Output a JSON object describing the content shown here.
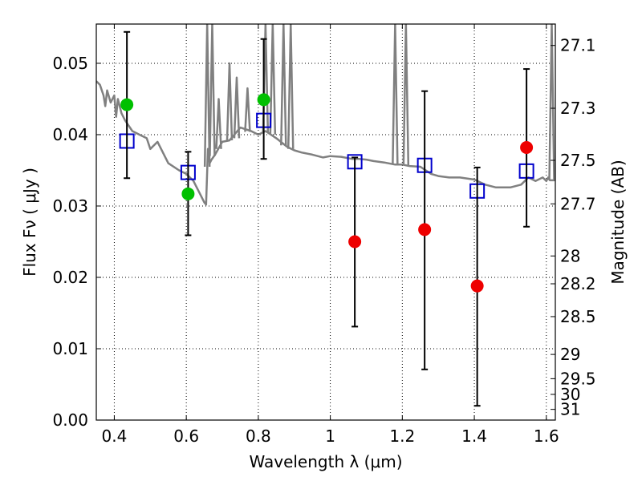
{
  "chart_data": {
    "type": "scatter",
    "title": "",
    "xlabel": "Wavelength  λ (μm)",
    "ylabel": "Flux  Fν  ( μJy )",
    "y2label": "Magnitude (AB)",
    "xlim": [
      0.35,
      1.625
    ],
    "ylim": [
      0.0,
      0.0555
    ],
    "grid": true,
    "xticks": [
      0.4,
      0.6,
      0.8,
      1.0,
      1.2,
      1.4,
      1.6
    ],
    "xtick_labels": [
      "0.4",
      "0.6",
      "0.8",
      "1",
      "1.2",
      "1.4",
      "1.6"
    ],
    "yticks": [
      0.0,
      0.01,
      0.02,
      0.03,
      0.04,
      0.05
    ],
    "ytick_labels": [
      "0.00",
      "0.01",
      "0.02",
      "0.03",
      "0.04",
      "0.05"
    ],
    "y2ticks": [
      {
        "mag": "27.1",
        "flux": 0.0525
      },
      {
        "mag": "27.3",
        "flux": 0.0437
      },
      {
        "mag": "27.5",
        "flux": 0.0364
      },
      {
        "mag": "27.7",
        "flux": 0.0303
      },
      {
        "mag": "28",
        "flux": 0.023
      },
      {
        "mag": "28.2",
        "flux": 0.0191
      },
      {
        "mag": "28.5",
        "flux": 0.0145
      },
      {
        "mag": "29",
        "flux": 0.0092
      },
      {
        "mag": "29.5",
        "flux": 0.0058
      },
      {
        "mag": "30",
        "flux": 0.0036
      },
      {
        "mag": "31",
        "flux": 0.0015
      }
    ],
    "series": [
      {
        "name": "model-spectrum",
        "kind": "line",
        "color": "#808080",
        "x": [
          0.35,
          0.36,
          0.37,
          0.375,
          0.38,
          0.39,
          0.4,
          0.405,
          0.41,
          0.42,
          0.43,
          0.45,
          0.47,
          0.49,
          0.5,
          0.52,
          0.55,
          0.58,
          0.6,
          0.62,
          0.64,
          0.65,
          0.655,
          0.66,
          0.665,
          0.67,
          0.68,
          0.7,
          0.72,
          0.75,
          0.78,
          0.8,
          0.82,
          0.85,
          0.88,
          0.9,
          0.92,
          0.95,
          0.98,
          1.0,
          1.03,
          1.06,
          1.08,
          1.1,
          1.12,
          1.15,
          1.18,
          1.2,
          1.22,
          1.25,
          1.28,
          1.3,
          1.33,
          1.36,
          1.4,
          1.43,
          1.46,
          1.5,
          1.53,
          1.55,
          1.57,
          1.59,
          1.6,
          1.605,
          1.61,
          1.625
        ],
        "y": [
          0.0475,
          0.047,
          0.0455,
          0.044,
          0.0462,
          0.0445,
          0.0455,
          0.0425,
          0.045,
          0.043,
          0.042,
          0.0405,
          0.04,
          0.0395,
          0.038,
          0.039,
          0.036,
          0.035,
          0.0345,
          0.0335,
          0.0315,
          0.0305,
          0.0302,
          0.038,
          0.036,
          0.0365,
          0.0372,
          0.039,
          0.0392,
          0.041,
          0.0405,
          0.04,
          0.0405,
          0.0395,
          0.0383,
          0.0378,
          0.0375,
          0.0372,
          0.0368,
          0.037,
          0.0369,
          0.0366,
          0.0366,
          0.0365,
          0.0363,
          0.0361,
          0.0358,
          0.0358,
          0.0356,
          0.0355,
          0.0345,
          0.0342,
          0.034,
          0.034,
          0.0337,
          0.033,
          0.0326,
          0.0326,
          0.033,
          0.034,
          0.0335,
          0.034,
          0.0335,
          0.034,
          0.0336,
          0.0336
        ]
      },
      {
        "name": "model-spikes",
        "kind": "spikes",
        "color": "#808080",
        "x": [
          0.658,
          0.672,
          0.69,
          0.72,
          0.74,
          0.77,
          0.82,
          0.84,
          0.87,
          0.89,
          1.18,
          1.21,
          1.615
        ],
        "top": [
          0.0555,
          0.0555,
          0.045,
          0.05,
          0.048,
          0.0465,
          0.0555,
          0.0555,
          0.0555,
          0.0555,
          0.0555,
          0.0555,
          0.0555
        ],
        "base": [
          0.0355,
          0.037,
          0.038,
          0.0392,
          0.0395,
          0.0404,
          0.0403,
          0.04,
          0.0385,
          0.038,
          0.0358,
          0.0357,
          0.0336
        ]
      },
      {
        "name": "model-bandpass-flux",
        "kind": "open-square",
        "color": "#0000cc",
        "x": [
          0.435,
          0.605,
          0.815,
          1.068,
          1.262,
          1.408,
          1.545
        ],
        "y": [
          0.0391,
          0.0347,
          0.042,
          0.0362,
          0.0357,
          0.0321,
          0.0349
        ]
      },
      {
        "name": "observed-detection",
        "kind": "filled-circle",
        "color": "#00c000",
        "x": [
          0.435,
          0.605,
          0.815
        ],
        "y": [
          0.0442,
          0.0317,
          0.0449
        ],
        "yerr_low": [
          0.0339,
          0.0259,
          0.0366
        ],
        "yerr_high": [
          0.0544,
          0.0376,
          0.0534
        ]
      },
      {
        "name": "observed-upper",
        "kind": "filled-circle",
        "color": "#ee0000",
        "x": [
          1.068,
          1.262,
          1.408,
          1.545
        ],
        "y": [
          0.025,
          0.0267,
          0.0188,
          0.0382
        ],
        "yerr_low": [
          0.0131,
          0.0071,
          0.002,
          0.0271
        ],
        "yerr_high": [
          0.0368,
          0.0461,
          0.0354,
          0.0492
        ]
      }
    ]
  }
}
